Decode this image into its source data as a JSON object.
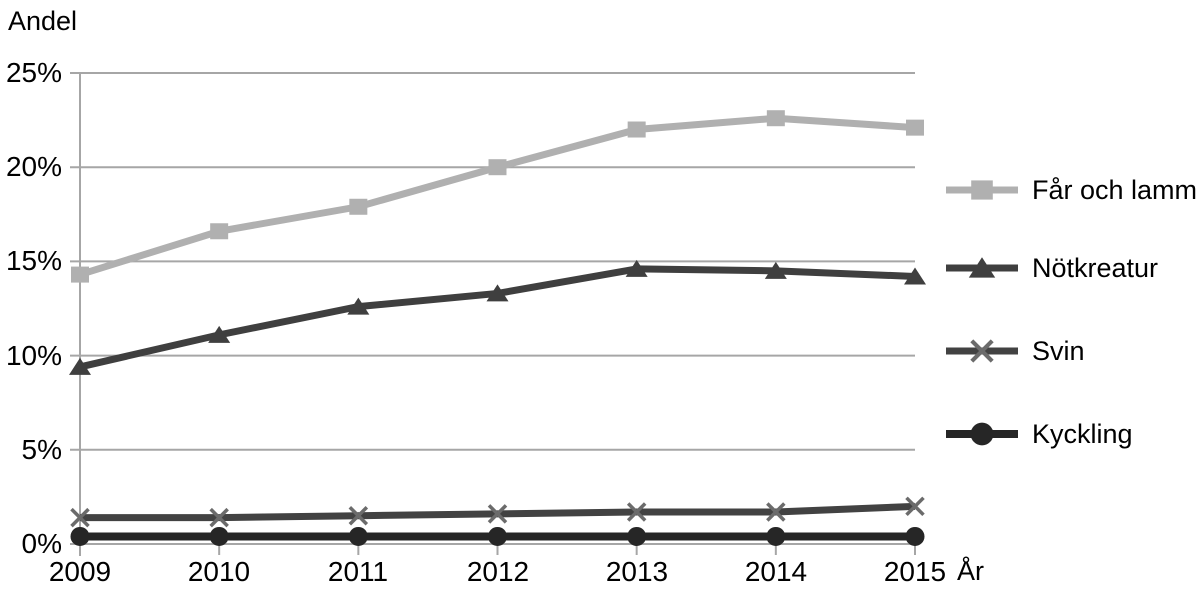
{
  "chart_data": {
    "type": "line",
    "title": "",
    "ylabel": "Andel",
    "xlabel": "År",
    "x": [
      2009,
      2010,
      2011,
      2012,
      2013,
      2014,
      2015
    ],
    "x_tick_labels": [
      "2009",
      "2010",
      "2011",
      "2012",
      "2013",
      "2014",
      "2015"
    ],
    "y_tick_labels": [
      "0%",
      "5%",
      "10%",
      "15%",
      "20%",
      "25%"
    ],
    "y_tick_values": [
      0,
      5,
      10,
      15,
      20,
      25
    ],
    "ylim": [
      0,
      25
    ],
    "grid": "horizontal",
    "legend_position": "right",
    "gridline_color": "#a6a6a6",
    "background_color": "#ffffff",
    "text_color": "#000000",
    "series": [
      {
        "name": "Får och lamm",
        "marker": "square",
        "color": "#b0b0b0",
        "line_width": 7,
        "values": [
          14.3,
          16.6,
          17.9,
          20.0,
          22.0,
          22.6,
          22.1
        ]
      },
      {
        "name": "Nötkreatur",
        "marker": "triangle",
        "color": "#3f3f3f",
        "line_width": 7,
        "values": [
          9.4,
          11.1,
          12.6,
          13.3,
          14.6,
          14.5,
          14.2
        ]
      },
      {
        "name": "Svin",
        "marker": "x",
        "color": "#424242",
        "marker_color": "#6b6b6b",
        "line_width": 7,
        "values": [
          1.4,
          1.4,
          1.5,
          1.6,
          1.7,
          1.7,
          2.0
        ]
      },
      {
        "name": "Kyckling",
        "marker": "circle",
        "color": "#262626",
        "line_width": 8,
        "values": [
          0.4,
          0.4,
          0.4,
          0.4,
          0.4,
          0.4,
          0.4
        ]
      }
    ]
  }
}
